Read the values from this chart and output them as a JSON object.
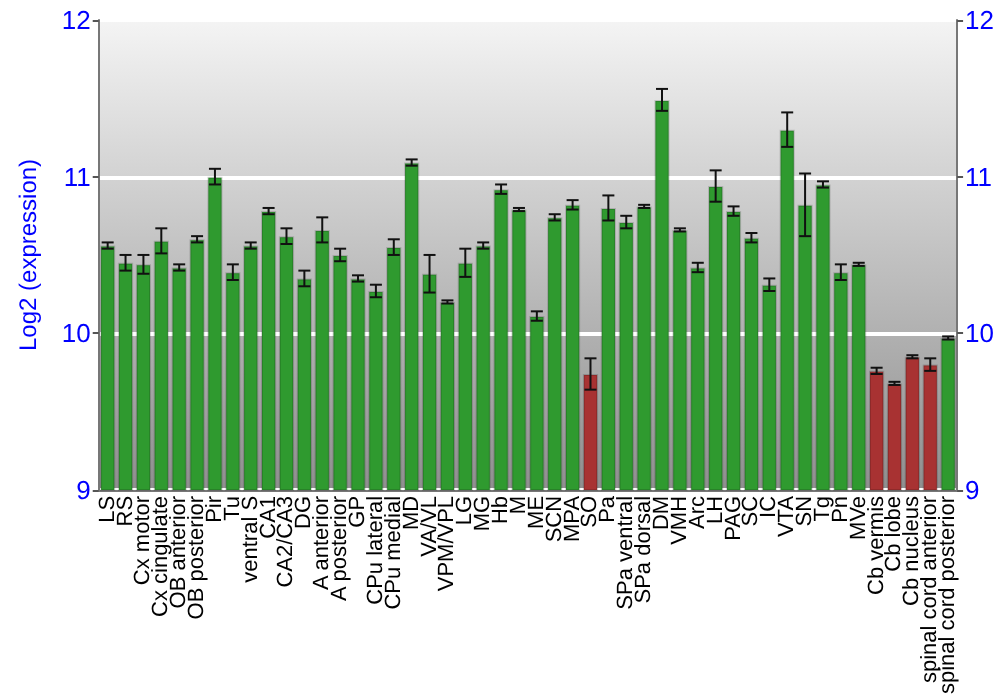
{
  "chart_data": {
    "type": "bar",
    "ylabel": "Log2 (expression)",
    "categories": [
      "LS",
      "RS",
      "Cx motor",
      "Cx cingulate",
      "OB anterior",
      "OB posterior",
      "Pir",
      "Tu",
      "ventral S",
      "CA1",
      "CA2/CA3",
      "DG",
      "A anterior",
      "A posterior",
      "GP",
      "CPu lateral",
      "CPu medial",
      "MD",
      "VA/VL",
      "VPM/VPL",
      "LG",
      "MG",
      "Hb",
      "M",
      "ME",
      "SCN",
      "MPA",
      "SO",
      "Pa",
      "SPa ventral",
      "SPa dorsal",
      "DM",
      "VMH",
      "Arc",
      "LH",
      "PAG",
      "SC",
      "IC",
      "VTA",
      "SN",
      "Tg",
      "Pn",
      "MVe",
      "Cb vermis",
      "Cb lobe",
      "Cb nucleus",
      "spinal cord anterior",
      "spinal cord posterior"
    ],
    "values": [
      10.56,
      10.45,
      10.44,
      10.59,
      10.42,
      10.6,
      11.0,
      10.39,
      10.56,
      10.78,
      10.62,
      10.35,
      10.66,
      10.5,
      10.35,
      10.27,
      10.55,
      11.09,
      10.38,
      10.2,
      10.45,
      10.56,
      10.92,
      10.79,
      10.11,
      10.74,
      10.82,
      9.74,
      10.8,
      10.71,
      10.81,
      11.49,
      10.66,
      10.42,
      10.94,
      10.78,
      10.61,
      10.31,
      11.3,
      10.82,
      10.95,
      10.39,
      10.44,
      9.76,
      9.68,
      9.85,
      9.8,
      9.97
    ],
    "errors": [
      0.02,
      0.05,
      0.06,
      0.08,
      0.02,
      0.02,
      0.05,
      0.05,
      0.02,
      0.02,
      0.05,
      0.05,
      0.08,
      0.04,
      0.02,
      0.04,
      0.05,
      0.02,
      0.12,
      0.01,
      0.09,
      0.02,
      0.03,
      0.01,
      0.03,
      0.02,
      0.03,
      0.1,
      0.08,
      0.04,
      0.01,
      0.07,
      0.01,
      0.03,
      0.1,
      0.03,
      0.03,
      0.04,
      0.11,
      0.2,
      0.02,
      0.05,
      0.01,
      0.02,
      0.01,
      0.01,
      0.04,
      0.01
    ],
    "colors": [
      "#2f9a2f",
      "#2f9a2f",
      "#2f9a2f",
      "#2f9a2f",
      "#2f9a2f",
      "#2f9a2f",
      "#2f9a2f",
      "#2f9a2f",
      "#2f9a2f",
      "#2f9a2f",
      "#2f9a2f",
      "#2f9a2f",
      "#2f9a2f",
      "#2f9a2f",
      "#2f9a2f",
      "#2f9a2f",
      "#2f9a2f",
      "#2f9a2f",
      "#2f9a2f",
      "#2f9a2f",
      "#2f9a2f",
      "#2f9a2f",
      "#2f9a2f",
      "#2f9a2f",
      "#2f9a2f",
      "#2f9a2f",
      "#2f9a2f",
      "#a83232",
      "#2f9a2f",
      "#2f9a2f",
      "#2f9a2f",
      "#2f9a2f",
      "#2f9a2f",
      "#2f9a2f",
      "#2f9a2f",
      "#2f9a2f",
      "#2f9a2f",
      "#2f9a2f",
      "#2f9a2f",
      "#2f9a2f",
      "#2f9a2f",
      "#2f9a2f",
      "#2f9a2f",
      "#a83232",
      "#a83232",
      "#a83232",
      "#a83232",
      "#2f9a2f"
    ],
    "ylim": [
      9,
      12
    ],
    "yticks": [
      9,
      10,
      11,
      12
    ],
    "y2lim": [
      9,
      12
    ],
    "y2ticks": [
      9,
      10,
      11,
      12
    ],
    "grid": "y"
  }
}
